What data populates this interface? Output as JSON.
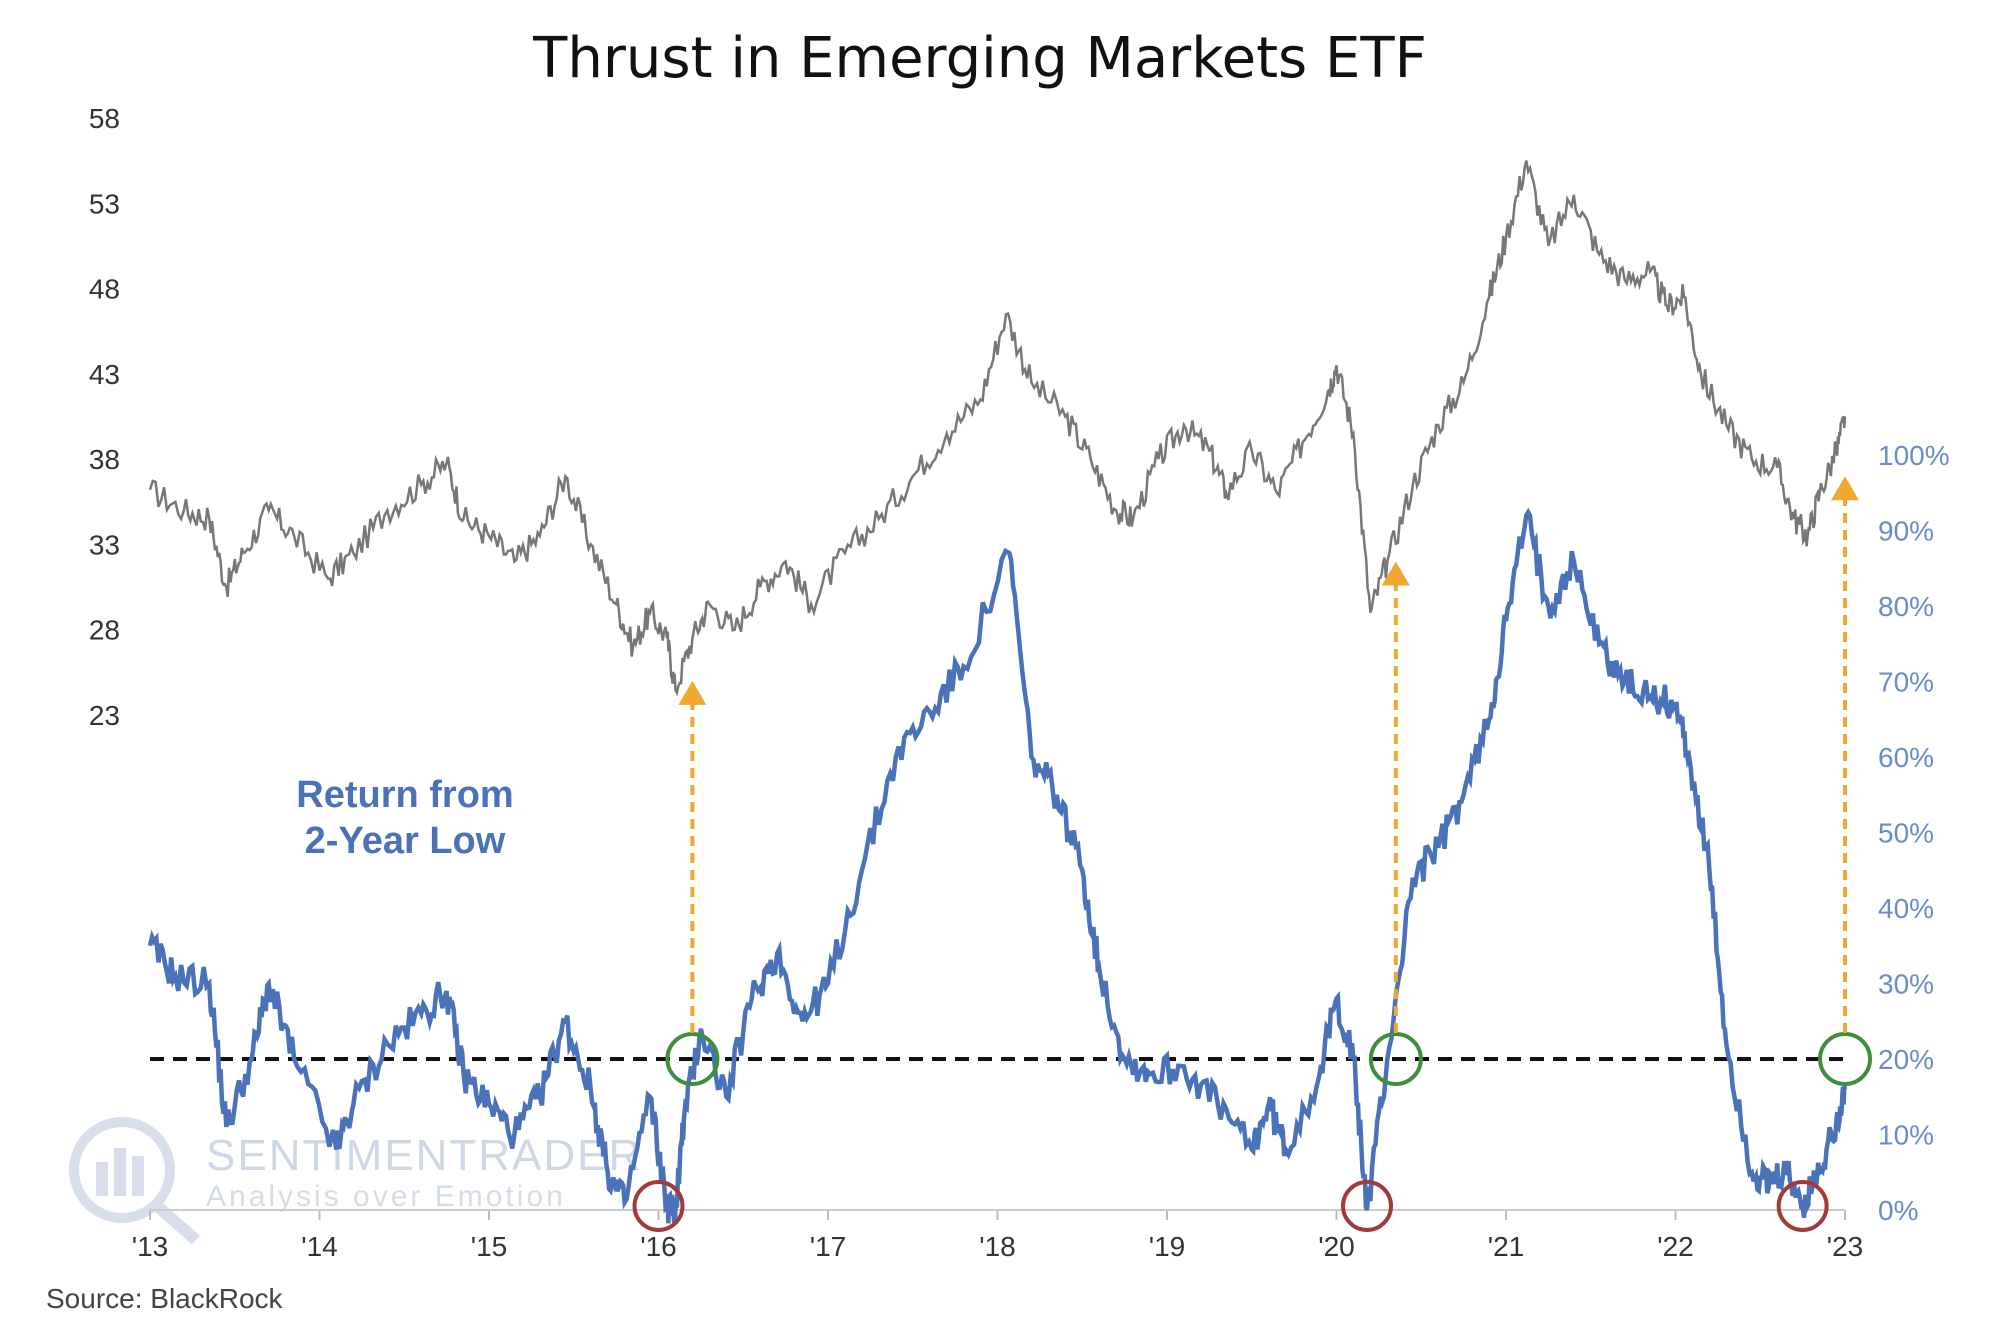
{
  "chart_data": {
    "type": "line",
    "title": "Thrust in Emerging Markets ETF",
    "source": "Source: BlackRock",
    "annotation": "Return from\n2-Year Low",
    "watermark": {
      "name": "SENTIMENTRADER",
      "tagline": "Analysis over Emotion"
    },
    "left_axis": {
      "ticks": [
        "23",
        "28",
        "33",
        "38",
        "43",
        "48",
        "53",
        "58"
      ],
      "ylim": [
        23,
        58
      ]
    },
    "right_axis": {
      "ticks": [
        "0%",
        "10%",
        "20%",
        "30%",
        "40%",
        "50%",
        "60%",
        "70%",
        "80%",
        "90%",
        "100%"
      ],
      "ylim": [
        0,
        100
      ]
    },
    "x_axis": {
      "ticks": [
        "'13",
        "'14",
        "'15",
        "'16",
        "'17",
        "'18",
        "'19",
        "'20",
        "'21",
        "'22",
        "'23"
      ],
      "xlim": [
        2013.0,
        2023.0
      ]
    },
    "threshold": 20,
    "colors": {
      "price": "#777777",
      "return": "#4a72b8",
      "threshold": "#111111",
      "arrow": "#f0a830",
      "low_marker": "#a33a3a",
      "thrust_marker": "#3e8e3e",
      "right_axis": "#6b8cc7"
    },
    "series": [
      {
        "axis": "left",
        "points": [
          [
            2013.0,
            36.2
          ],
          [
            2013.2,
            35.0
          ],
          [
            2013.35,
            34.5
          ],
          [
            2013.45,
            30.5
          ],
          [
            2013.55,
            32.5
          ],
          [
            2013.7,
            35.0
          ],
          [
            2013.85,
            33.5
          ],
          [
            2014.05,
            31.0
          ],
          [
            2014.2,
            32.5
          ],
          [
            2014.4,
            35.0
          ],
          [
            2014.6,
            36.5
          ],
          [
            2014.75,
            37.8
          ],
          [
            2014.85,
            34.5
          ],
          [
            2015.0,
            33.5
          ],
          [
            2015.15,
            32.0
          ],
          [
            2015.3,
            33.5
          ],
          [
            2015.45,
            37.0
          ],
          [
            2015.6,
            33.0
          ],
          [
            2015.75,
            29.5
          ],
          [
            2015.85,
            27.0
          ],
          [
            2015.95,
            29.0
          ],
          [
            2016.05,
            27.5
          ],
          [
            2016.1,
            24.5
          ],
          [
            2016.2,
            27.5
          ],
          [
            2016.3,
            29.5
          ],
          [
            2016.45,
            28.0
          ],
          [
            2016.6,
            30.5
          ],
          [
            2016.75,
            32.0
          ],
          [
            2016.9,
            29.5
          ],
          [
            2017.1,
            32.5
          ],
          [
            2017.3,
            34.5
          ],
          [
            2017.5,
            37.0
          ],
          [
            2017.7,
            39.5
          ],
          [
            2017.9,
            41.5
          ],
          [
            2018.05,
            46.5
          ],
          [
            2018.2,
            42.5
          ],
          [
            2018.4,
            40.5
          ],
          [
            2018.55,
            38.0
          ],
          [
            2018.7,
            35.0
          ],
          [
            2018.8,
            34.5
          ],
          [
            2018.95,
            38.0
          ],
          [
            2019.1,
            40.0
          ],
          [
            2019.25,
            38.5
          ],
          [
            2019.35,
            36.0
          ],
          [
            2019.5,
            38.5
          ],
          [
            2019.65,
            36.0
          ],
          [
            2019.8,
            39.0
          ],
          [
            2019.95,
            42.0
          ],
          [
            2020.0,
            43.5
          ],
          [
            2020.1,
            39.5
          ],
          [
            2020.2,
            29.0
          ],
          [
            2020.3,
            32.0
          ],
          [
            2020.45,
            36.5
          ],
          [
            2020.6,
            40.0
          ],
          [
            2020.75,
            42.5
          ],
          [
            2020.9,
            47.5
          ],
          [
            2021.0,
            51.0
          ],
          [
            2021.12,
            55.5
          ],
          [
            2021.25,
            50.5
          ],
          [
            2021.4,
            53.5
          ],
          [
            2021.55,
            50.0
          ],
          [
            2021.7,
            48.5
          ],
          [
            2021.85,
            49.0
          ],
          [
            2021.95,
            47.0
          ],
          [
            2022.05,
            47.5
          ],
          [
            2022.15,
            43.0
          ],
          [
            2022.3,
            40.0
          ],
          [
            2022.45,
            38.0
          ],
          [
            2022.6,
            37.5
          ],
          [
            2022.7,
            34.5
          ],
          [
            2022.78,
            33.5
          ],
          [
            2022.85,
            36.0
          ],
          [
            2022.95,
            38.5
          ],
          [
            2023.0,
            40.5
          ]
        ]
      },
      {
        "axis": "right",
        "points": [
          [
            2013.0,
            35.0
          ],
          [
            2013.15,
            31.0
          ],
          [
            2013.35,
            30.0
          ],
          [
            2013.45,
            11.0
          ],
          [
            2013.6,
            20.0
          ],
          [
            2013.7,
            30.0
          ],
          [
            2013.85,
            20.0
          ],
          [
            2014.1,
            8.0
          ],
          [
            2014.2,
            14.0
          ],
          [
            2014.4,
            22.0
          ],
          [
            2014.6,
            26.0
          ],
          [
            2014.75,
            29.0
          ],
          [
            2014.85,
            18.0
          ],
          [
            2015.0,
            14.0
          ],
          [
            2015.15,
            10.0
          ],
          [
            2015.3,
            15.0
          ],
          [
            2015.45,
            25.0
          ],
          [
            2015.6,
            16.0
          ],
          [
            2015.7,
            5.0
          ],
          [
            2015.8,
            1.0
          ],
          [
            2015.95,
            15.0
          ],
          [
            2016.05,
            0.5
          ],
          [
            2016.1,
            0.0
          ],
          [
            2016.15,
            12.0
          ],
          [
            2016.25,
            24.0
          ],
          [
            2016.4,
            15.0
          ],
          [
            2016.55,
            28.0
          ],
          [
            2016.7,
            34.0
          ],
          [
            2016.85,
            25.0
          ],
          [
            2017.0,
            30.0
          ],
          [
            2017.2,
            45.0
          ],
          [
            2017.4,
            60.0
          ],
          [
            2017.6,
            66.0
          ],
          [
            2017.8,
            72.0
          ],
          [
            2018.07,
            87.0
          ],
          [
            2018.2,
            60.0
          ],
          [
            2018.35,
            55.0
          ],
          [
            2018.5,
            45.0
          ],
          [
            2018.6,
            32.0
          ],
          [
            2018.75,
            20.0
          ],
          [
            2018.9,
            18.0
          ],
          [
            2019.1,
            19.0
          ],
          [
            2019.3,
            14.0
          ],
          [
            2019.5,
            8.0
          ],
          [
            2019.6,
            14.0
          ],
          [
            2019.7,
            8.0
          ],
          [
            2019.9,
            18.0
          ],
          [
            2020.0,
            28.0
          ],
          [
            2020.1,
            20.0
          ],
          [
            2020.18,
            0.0
          ],
          [
            2020.3,
            20.0
          ],
          [
            2020.45,
            44.0
          ],
          [
            2020.6,
            48.0
          ],
          [
            2020.75,
            55.0
          ],
          [
            2020.9,
            65.0
          ],
          [
            2021.0,
            78.0
          ],
          [
            2021.12,
            92.0
          ],
          [
            2021.25,
            80.0
          ],
          [
            2021.4,
            86.0
          ],
          [
            2021.55,
            75.0
          ],
          [
            2021.7,
            70.0
          ],
          [
            2021.85,
            68.0
          ],
          [
            2022.0,
            67.0
          ],
          [
            2022.08,
            60.0
          ],
          [
            2022.2,
            45.0
          ],
          [
            2022.3,
            22.0
          ],
          [
            2022.45,
            5.0
          ],
          [
            2022.55,
            3.0
          ],
          [
            2022.65,
            5.0
          ],
          [
            2022.75,
            0.5
          ],
          [
            2022.85,
            5.0
          ],
          [
            2022.95,
            12.0
          ],
          [
            2023.0,
            16.0
          ]
        ]
      }
    ],
    "events": [
      {
        "low_x": 2016.0,
        "thrust_x": 2016.2,
        "arrow_top_left": 25
      },
      {
        "low_x": 2020.18,
        "thrust_x": 2020.35,
        "arrow_top_left": 32
      },
      {
        "low_x": 2022.75,
        "thrust_x": 2023.0,
        "arrow_top_left": 37
      }
    ]
  }
}
